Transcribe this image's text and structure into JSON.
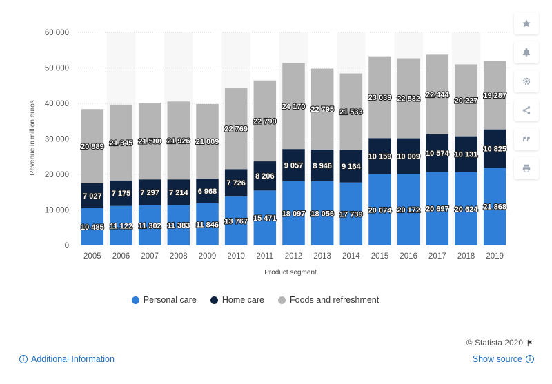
{
  "chart_data": {
    "type": "bar",
    "stacked": true,
    "categories": [
      "2005",
      "2006",
      "2007",
      "2008",
      "2009",
      "2010",
      "2011",
      "2012",
      "2013",
      "2014",
      "2015",
      "2016",
      "2017",
      "2018",
      "2019"
    ],
    "series": [
      {
        "name": "Personal care",
        "color": "#2f7ed8",
        "values": [
          10485,
          11122,
          11302,
          11383,
          11846,
          13767,
          15471,
          18097,
          18056,
          17739,
          20074,
          20172,
          20697,
          20624,
          21868
        ],
        "labels": [
          "10 485",
          "11 122",
          "11 302",
          "11 383",
          "11 846",
          "13 767",
          "15 471",
          "18 097",
          "18 056",
          "17 739",
          "20 074",
          "20 172",
          "20 697",
          "20 624",
          "21 868"
        ]
      },
      {
        "name": "Home care",
        "color": "#0d2240",
        "values": [
          7027,
          7175,
          7297,
          7214,
          6968,
          7726,
          8206,
          9057,
          8946,
          9164,
          10159,
          10009,
          10574,
          10131,
          10825
        ],
        "labels": [
          "7 027",
          "7 175",
          "7 297",
          "7 214",
          "6 968",
          "7 726",
          "8 206",
          "9 057",
          "8 946",
          "9 164",
          "10 159",
          "10 009",
          "10 574",
          "10 131",
          "10 825"
        ]
      },
      {
        "name": "Foods and refreshment",
        "color": "#b5b5b5",
        "values": [
          20889,
          21345,
          21588,
          21926,
          21009,
          22769,
          22790,
          24170,
          22795,
          21533,
          23039,
          22532,
          22444,
          20227,
          19287
        ],
        "labels": [
          "20 889",
          "21 345",
          "21 588",
          "21 926",
          "21 009",
          "22 769",
          "22 790",
          "24 170",
          "22 795",
          "21 533",
          "23 039",
          "22 532",
          "22 444",
          "20 227",
          "19 287"
        ]
      }
    ],
    "xlabel": "Product segment",
    "ylabel": "Revenue in million euros",
    "ylim": [
      0,
      60000
    ],
    "yticks": [
      0,
      10000,
      20000,
      30000,
      40000,
      50000,
      60000
    ],
    "ytick_labels": [
      "0",
      "10 000",
      "20 000",
      "30 000",
      "40 000",
      "50 000",
      "60 000"
    ],
    "grid": true,
    "legend_position": "bottom"
  },
  "legend": {
    "items": [
      {
        "label": "Personal care",
        "color": "#2f7ed8"
      },
      {
        "label": "Home care",
        "color": "#0d2240"
      },
      {
        "label": "Foods and refreshment",
        "color": "#b5b5b5"
      }
    ]
  },
  "footer": {
    "credit": "© Statista 2020",
    "additional_info": "Additional Information",
    "show_source": "Show source"
  },
  "sidebar": {
    "icons": [
      "star-icon",
      "bell-icon",
      "gear-icon",
      "share-icon",
      "quote-icon",
      "print-icon"
    ]
  }
}
